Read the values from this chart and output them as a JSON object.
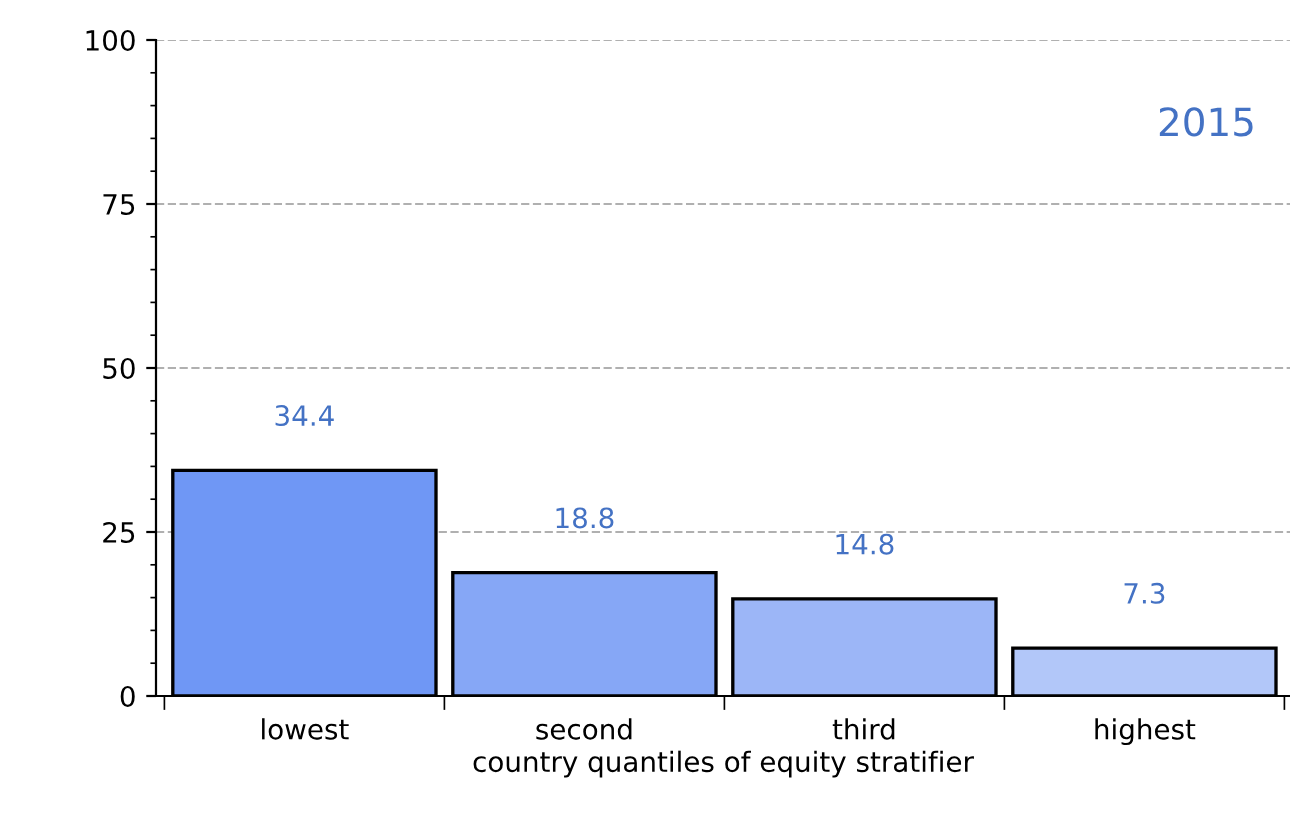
{
  "chart_data": {
    "type": "bar",
    "xlabel": "country quantiles of equity stratifier",
    "categories": [
      "lowest",
      "second",
      "third",
      "highest"
    ],
    "values": [
      34.4,
      18.8,
      14.8,
      7.3
    ],
    "colors": [
      "#6f97f5",
      "#86a7f6",
      "#9cb6f7",
      "#b2c7f9"
    ],
    "ylim": [
      0,
      100
    ],
    "yticks": [
      0,
      25,
      50,
      75,
      100
    ],
    "grid": "y",
    "data_labels": true,
    "legend": false,
    "annotations": [
      "2015"
    ]
  }
}
